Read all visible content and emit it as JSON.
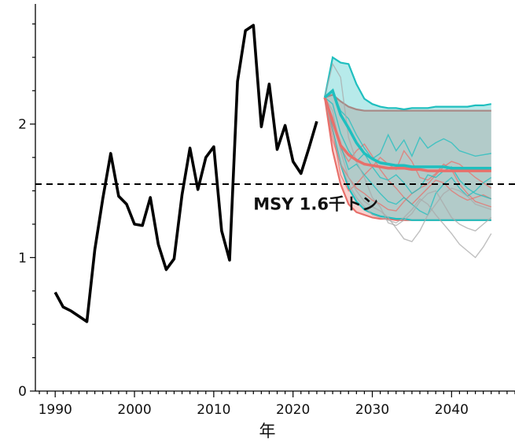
{
  "chart_data": {
    "type": "line",
    "title": "",
    "xlabel": "年",
    "ylabel": "",
    "xlim": [
      1987.5,
      2048.0
    ],
    "ylim": [
      0,
      2.9
    ],
    "x_ticks": [
      1990,
      2000,
      2010,
      2020,
      2030,
      2040
    ],
    "x_tick_labels": [
      "1990",
      "2000",
      "2010",
      "2020",
      "2030",
      "2040"
    ],
    "y_ticks": [
      0,
      1,
      2
    ],
    "y_tick_labels": [
      "0",
      "1",
      "2"
    ],
    "grid": false,
    "legend": "none",
    "annotations": [
      {
        "text": "MSY 1.6千トン",
        "x": 2015,
        "y": 1.36
      }
    ],
    "reference_line": {
      "y": 1.55,
      "style": "dashed",
      "color": "#000000"
    },
    "historical": {
      "color": "#000000",
      "x": [
        1990,
        1991,
        1992,
        1993,
        1994,
        1995,
        1996,
        1997,
        1998,
        1999,
        2000,
        2001,
        2002,
        2003,
        2004,
        2005,
        2006,
        2007,
        2008,
        2009,
        2010,
        2011,
        2012,
        2013,
        2014,
        2015,
        2016,
        2017,
        2018,
        2019,
        2020,
        2021,
        2022,
        2023
      ],
      "y": [
        0.74,
        0.63,
        0.6,
        0.56,
        0.52,
        1.06,
        1.44,
        1.78,
        1.46,
        1.4,
        1.25,
        1.24,
        1.45,
        1.1,
        0.91,
        0.99,
        1.47,
        1.82,
        1.51,
        1.75,
        1.83,
        1.2,
        0.98,
        2.32,
        2.7,
        2.74,
        1.98,
        2.3,
        1.81,
        1.99,
        1.72,
        1.63,
        1.82,
        2.02
      ]
    },
    "series": [
      {
        "color": "#e8706b",
        "x": [
          2024,
          2025,
          2026,
          2027,
          2028,
          2029,
          2030,
          2031,
          2032,
          2033,
          2034,
          2035,
          2036,
          2037,
          2038,
          2039,
          2040,
          2041,
          2042,
          2043,
          2044,
          2045
        ],
        "band_upper": [
          2.2,
          2.22,
          2.17,
          2.13,
          2.11,
          2.1,
          2.1,
          2.1,
          2.1,
          2.1,
          2.1,
          2.1,
          2.1,
          2.1,
          2.1,
          2.1,
          2.1,
          2.1,
          2.1,
          2.1,
          2.1,
          2.1
        ],
        "band_lower": [
          2.2,
          1.8,
          1.55,
          1.4,
          1.34,
          1.32,
          1.3,
          1.29,
          1.29,
          1.28,
          1.28,
          1.28,
          1.28,
          1.28,
          1.28,
          1.28,
          1.28,
          1.28,
          1.28,
          1.28,
          1.28,
          1.28
        ],
        "median": [
          2.2,
          2.02,
          1.84,
          1.77,
          1.73,
          1.7,
          1.69,
          1.68,
          1.67,
          1.67,
          1.67,
          1.66,
          1.66,
          1.65,
          1.65,
          1.65,
          1.65,
          1.65,
          1.65,
          1.65,
          1.65,
          1.65
        ],
        "samples": [
          [
            2.2,
            1.95,
            1.62,
            1.5,
            1.55,
            1.62,
            1.68,
            1.75,
            1.7,
            1.66,
            1.8,
            1.72,
            1.6,
            1.58,
            1.63,
            1.7,
            1.66,
            1.55,
            1.48,
            1.42,
            1.4,
            1.38
          ],
          [
            2.2,
            2.05,
            1.82,
            1.72,
            1.8,
            1.85,
            1.76,
            1.66,
            1.58,
            1.52,
            1.45,
            1.4,
            1.46,
            1.52,
            1.58,
            1.56,
            1.5,
            1.46,
            1.43,
            1.45,
            1.47,
            1.44
          ],
          [
            2.2,
            1.88,
            1.7,
            1.6,
            1.52,
            1.48,
            1.43,
            1.4,
            1.36,
            1.35,
            1.42,
            1.48,
            1.52,
            1.55,
            1.62,
            1.68,
            1.72,
            1.7,
            1.65,
            1.6,
            1.56,
            1.52
          ]
        ]
      },
      {
        "color": "#1fbfbf",
        "x": [
          2024,
          2025,
          2026,
          2027,
          2028,
          2029,
          2030,
          2031,
          2032,
          2033,
          2034,
          2035,
          2036,
          2037,
          2038,
          2039,
          2040,
          2041,
          2042,
          2043,
          2044,
          2045
        ],
        "band_upper": [
          2.2,
          2.5,
          2.46,
          2.45,
          2.3,
          2.19,
          2.15,
          2.13,
          2.12,
          2.12,
          2.11,
          2.12,
          2.12,
          2.12,
          2.13,
          2.13,
          2.13,
          2.13,
          2.13,
          2.14,
          2.14,
          2.15
        ],
        "band_lower": [
          2.2,
          1.95,
          1.7,
          1.52,
          1.42,
          1.36,
          1.33,
          1.31,
          1.3,
          1.29,
          1.29,
          1.28,
          1.28,
          1.28,
          1.28,
          1.28,
          1.28,
          1.28,
          1.28,
          1.28,
          1.28,
          1.28
        ],
        "median": [
          2.2,
          2.25,
          2.07,
          1.97,
          1.86,
          1.78,
          1.74,
          1.71,
          1.7,
          1.69,
          1.69,
          1.68,
          1.68,
          1.68,
          1.68,
          1.68,
          1.67,
          1.67,
          1.67,
          1.67,
          1.67,
          1.67
        ],
        "samples": [
          [
            2.2,
            2.24,
            2.1,
            2.04,
            1.92,
            1.82,
            1.74,
            1.78,
            1.92,
            1.8,
            1.88,
            1.76,
            1.9,
            1.82,
            1.86,
            1.89,
            1.86,
            1.8,
            1.78,
            1.76,
            1.77,
            1.78
          ],
          [
            2.2,
            2.0,
            1.84,
            1.66,
            1.7,
            1.62,
            1.55,
            1.48,
            1.42,
            1.4,
            1.45,
            1.4,
            1.35,
            1.32,
            1.48,
            1.55,
            1.6,
            1.52,
            1.46,
            1.5,
            1.56,
            1.6
          ],
          [
            2.2,
            2.15,
            1.93,
            1.8,
            1.72,
            1.78,
            1.68,
            1.6,
            1.58,
            1.62,
            1.56,
            1.48,
            1.52,
            1.62,
            1.6,
            1.65,
            1.68,
            1.58,
            1.52,
            1.48,
            1.46,
            1.44
          ]
        ]
      },
      {
        "color": "#a9a9a9",
        "x": [
          2024,
          2025,
          2026,
          2027,
          2028,
          2029,
          2030,
          2031,
          2032,
          2033,
          2034,
          2035,
          2036,
          2037,
          2038,
          2039,
          2040,
          2041,
          2042,
          2043,
          2044,
          2045
        ],
        "samples": [
          [
            2.2,
            2.45,
            2.35,
            1.9,
            1.72,
            1.6,
            1.45,
            1.38,
            1.26,
            1.24,
            1.28,
            1.33,
            1.42,
            1.48,
            1.5,
            1.4,
            1.3,
            1.25,
            1.22,
            1.2,
            1.25,
            1.3
          ],
          [
            2.2,
            2.1,
            1.8,
            1.6,
            1.5,
            1.42,
            1.38,
            1.35,
            1.3,
            1.22,
            1.14,
            1.12,
            1.2,
            1.32,
            1.4,
            1.48,
            1.52,
            1.5,
            1.46,
            1.4,
            1.38,
            1.36
          ],
          [
            2.2,
            1.94,
            1.7,
            1.55,
            1.45,
            1.38,
            1.32,
            1.3,
            1.28,
            1.26,
            1.3,
            1.36,
            1.44,
            1.4,
            1.32,
            1.25,
            1.18,
            1.1,
            1.05,
            1.0,
            1.08,
            1.18
          ]
        ]
      }
    ]
  }
}
